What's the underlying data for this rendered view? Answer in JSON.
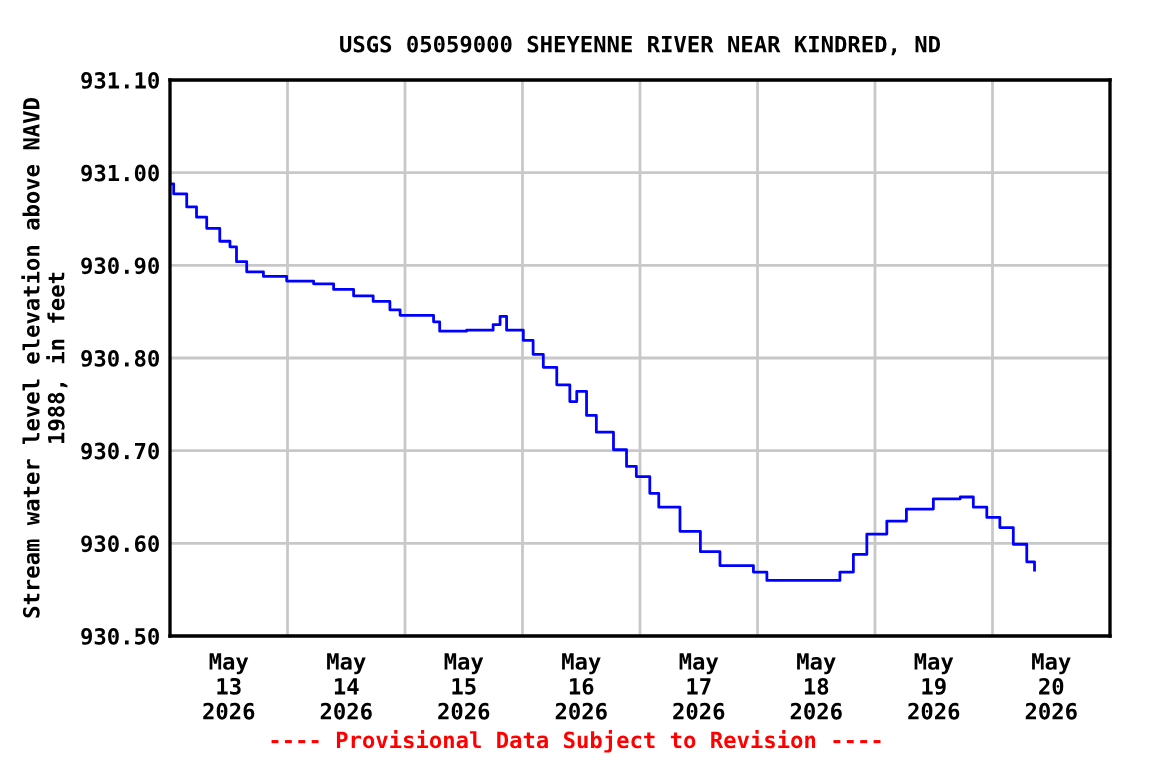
{
  "chart_data": {
    "type": "step",
    "title": "USGS 05059000 SHEYENNE RIVER NEAR KINDRED, ND",
    "ylabel": "Stream water level elevation above NAVD\n1988, in feet",
    "annotations": [
      "---- Provisional Data Subject to Revision ----"
    ],
    "xlim": [
      "2026-05-13T00:00",
      "2026-05-21T00:00"
    ],
    "xticks": [
      {
        "value": "2026-05-13T12:00",
        "label": "May\n13\n2026"
      },
      {
        "value": "2026-05-14T12:00",
        "label": "May\n14\n2026"
      },
      {
        "value": "2026-05-15T12:00",
        "label": "May\n15\n2026"
      },
      {
        "value": "2026-05-16T12:00",
        "label": "May\n16\n2026"
      },
      {
        "value": "2026-05-17T12:00",
        "label": "May\n17\n2026"
      },
      {
        "value": "2026-05-18T12:00",
        "label": "May\n18\n2026"
      },
      {
        "value": "2026-05-19T12:00",
        "label": "May\n19\n2026"
      },
      {
        "value": "2026-05-20T12:00",
        "label": "May\n20\n2026"
      },
      {
        "value": "2026-05-14T00:00",
        "label": null
      },
      {
        "value": "2026-05-15T00:00",
        "label": null
      },
      {
        "value": "2026-05-16T00:00",
        "label": null
      },
      {
        "value": "2026-05-17T00:00",
        "label": null
      },
      {
        "value": "2026-05-18T00:00",
        "label": null
      },
      {
        "value": "2026-05-19T00:00",
        "label": null
      },
      {
        "value": "2026-05-20T00:00",
        "label": null
      }
    ],
    "ylim": [
      930.5,
      931.1
    ],
    "yticks": [
      {
        "value": 930.5,
        "label": "930.50"
      },
      {
        "value": 930.6,
        "label": "930.60"
      },
      {
        "value": 930.7,
        "label": "930.70"
      },
      {
        "value": 930.8,
        "label": "930.80"
      },
      {
        "value": 930.9,
        "label": "930.90"
      },
      {
        "value": 931.0,
        "label": "931.00"
      },
      {
        "value": 931.1,
        "label": "931.10"
      }
    ],
    "grid": true,
    "marker": "none",
    "line_style": "solid",
    "series": [
      {
        "color": "#0000ff",
        "x": [
          "2026-05-13T00:05",
          "2026-05-13T00:45",
          "2026-05-13T03:25",
          "2026-05-13T05:25",
          "2026-05-13T07:30",
          "2026-05-13T10:10",
          "2026-05-13T12:15",
          "2026-05-13T13:35",
          "2026-05-13T15:40",
          "2026-05-13T19:05",
          "2026-05-13T23:50",
          "2026-05-14T05:20",
          "2026-05-14T09:25",
          "2026-05-14T13:30",
          "2026-05-14T17:30",
          "2026-05-14T20:55",
          "2026-05-14T23:00",
          "2026-05-15T05:50",
          "2026-05-15T07:05",
          "2026-05-15T12:35",
          "2026-05-15T18:00",
          "2026-05-15T19:25",
          "2026-05-15T20:45",
          "2026-05-16T00:10",
          "2026-05-16T02:10",
          "2026-05-16T04:15",
          "2026-05-16T07:00",
          "2026-05-16T09:40",
          "2026-05-16T11:05",
          "2026-05-16T13:05",
          "2026-05-16T15:05",
          "2026-05-16T18:35",
          "2026-05-16T21:15",
          "2026-05-16T23:15",
          "2026-05-17T02:00",
          "2026-05-17T03:50",
          "2026-05-17T08:10",
          "2026-05-17T12:20",
          "2026-05-17T16:20",
          "2026-05-17T23:10",
          "2026-05-18T01:55",
          "2026-05-18T11:25",
          "2026-05-18T16:50",
          "2026-05-18T19:35",
          "2026-05-18T22:20",
          "2026-05-19T02:25",
          "2026-05-19T06:25",
          "2026-05-19T11:55",
          "2026-05-19T17:25",
          "2026-05-19T20:05",
          "2026-05-19T22:50",
          "2026-05-20T01:30",
          "2026-05-20T04:15",
          "2026-05-20T07:00",
          "2026-05-20T08:35"
        ],
        "values": [
          930.988,
          930.977,
          930.963,
          930.952,
          930.94,
          930.926,
          930.92,
          930.904,
          930.893,
          930.888,
          930.883,
          930.88,
          930.874,
          930.867,
          930.861,
          930.852,
          930.846,
          930.839,
          930.829,
          930.83,
          930.836,
          930.845,
          930.83,
          930.819,
          930.804,
          930.79,
          930.771,
          930.753,
          930.764,
          930.738,
          930.72,
          930.701,
          930.683,
          930.672,
          930.654,
          930.639,
          930.613,
          930.591,
          930.576,
          930.569,
          930.56,
          930.56,
          930.569,
          930.588,
          930.61,
          930.624,
          930.637,
          930.648,
          930.65,
          930.639,
          930.628,
          930.617,
          930.599,
          930.58,
          930.571
        ]
      }
    ]
  }
}
